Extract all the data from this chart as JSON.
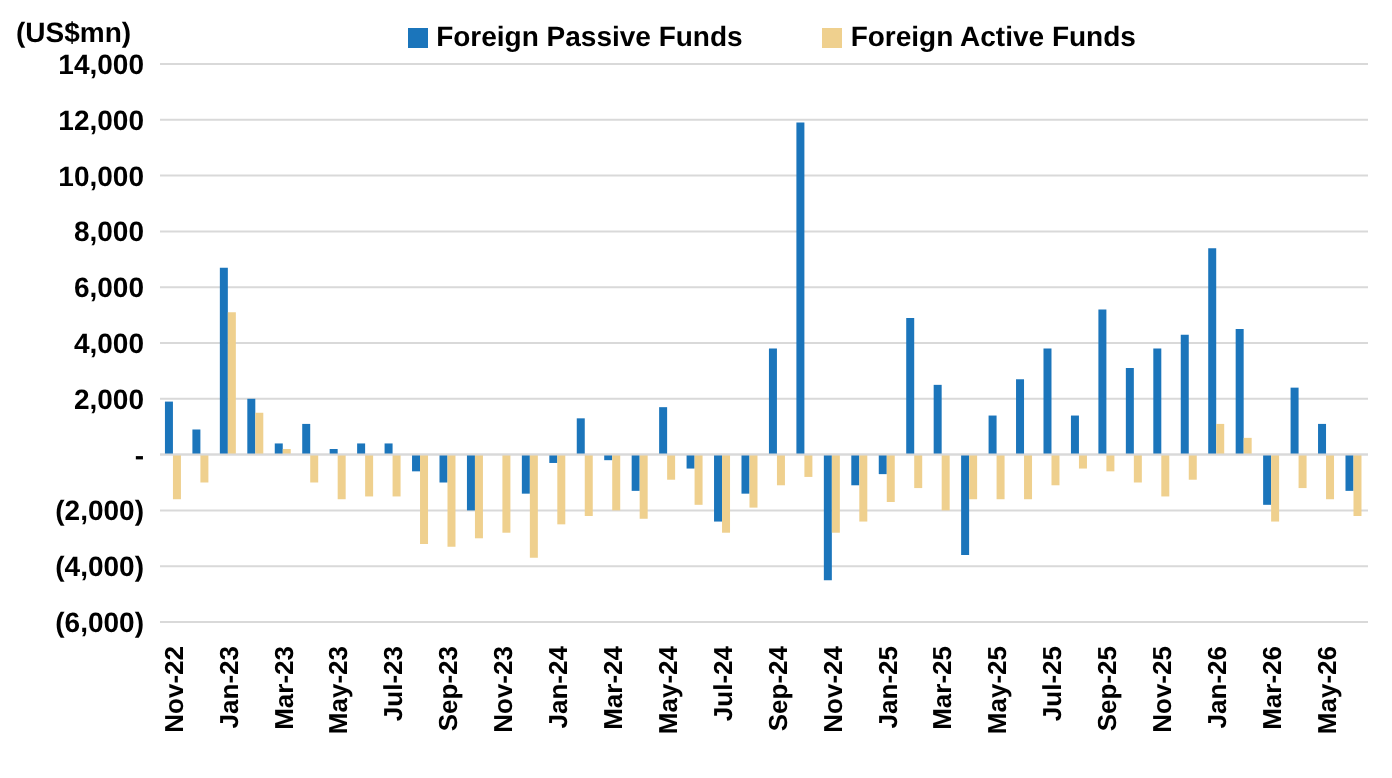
{
  "chart_data": {
    "type": "bar",
    "ylabel": "(US$mn)",
    "categories": [
      "Nov-22",
      null,
      "Jan-23",
      null,
      "Mar-23",
      null,
      "May-23",
      null,
      "Jul-23",
      null,
      "Sep-23",
      null,
      "Nov-23",
      null,
      "Jan-24",
      null,
      "Mar-24",
      null,
      "May-24",
      null,
      "Jul-24",
      null,
      "Sep-24",
      null,
      "Nov-24",
      null,
      "Jan-25",
      null,
      "Mar-25",
      null,
      "May-25",
      null,
      "Jul-25",
      null,
      "Sep-25",
      null,
      "Nov-25",
      null,
      "Jan-26",
      null,
      "Mar-26",
      null,
      "May-26",
      null
    ],
    "series": [
      {
        "name": "Foreign Passive Funds",
        "color": "#1b75bb",
        "values": [
          1900,
          900,
          6700,
          2000,
          400,
          1100,
          200,
          400,
          400,
          -600,
          -1000,
          -2000,
          0,
          -1400,
          -300,
          1300,
          -200,
          -1300,
          1700,
          -500,
          -2400,
          -1400,
          3800,
          11900,
          -4500,
          -1100,
          -700,
          4900,
          2500,
          -3600,
          1400,
          2700,
          3800,
          1400,
          5200,
          3100,
          3800,
          4300,
          7400,
          4500,
          -1800,
          2400,
          1100,
          -1300
        ]
      },
      {
        "name": "Foreign Active Funds",
        "color": "#efd08e",
        "values": [
          -1600,
          -1000,
          5100,
          1500,
          200,
          -1000,
          -1600,
          -1500,
          -1500,
          -3200,
          -3300,
          -3000,
          -2800,
          -3700,
          -2500,
          -2200,
          -2000,
          -2300,
          -900,
          -1800,
          -2800,
          -1900,
          -1100,
          -800,
          -2800,
          -2400,
          -1700,
          -1200,
          -2000,
          -1600,
          -1600,
          -1600,
          -1100,
          -500,
          -600,
          -1000,
          -1500,
          -900,
          1100,
          600,
          -2400,
          -1200,
          -1600,
          -2200
        ]
      }
    ],
    "ylim": [
      -6000,
      14000
    ],
    "yticks": [
      {
        "value": -6000,
        "label": "(6,000)"
      },
      {
        "value": -4000,
        "label": "(4,000)"
      },
      {
        "value": -2000,
        "label": "(2,000)"
      },
      {
        "value": 0,
        "label": "-"
      },
      {
        "value": 2000,
        "label": "2,000"
      },
      {
        "value": 4000,
        "label": "4,000"
      },
      {
        "value": 6000,
        "label": "6,000"
      },
      {
        "value": 8000,
        "label": "8,000"
      },
      {
        "value": 10000,
        "label": "10,000"
      },
      {
        "value": 12000,
        "label": "12,000"
      },
      {
        "value": 14000,
        "label": "14,000"
      }
    ],
    "grid": "y",
    "legend": "top"
  }
}
